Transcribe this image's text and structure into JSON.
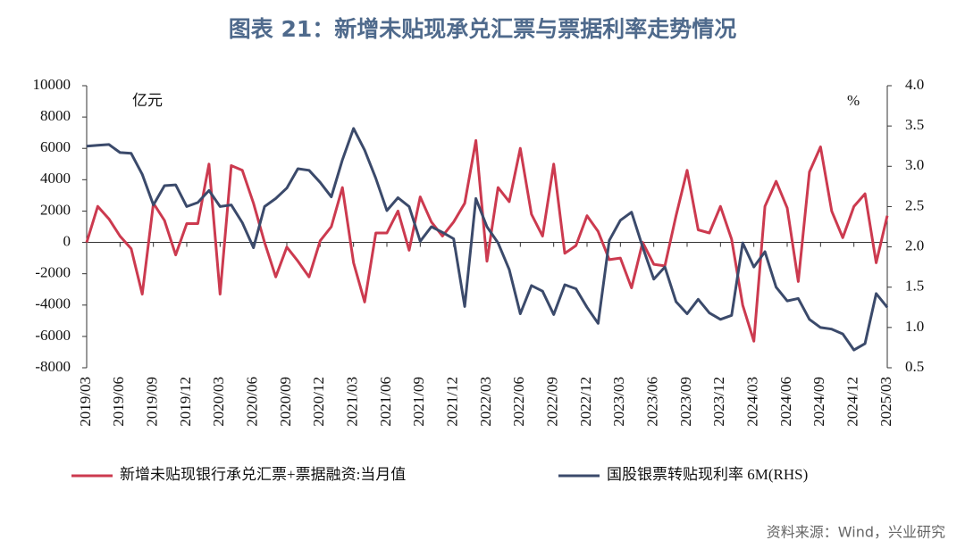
{
  "chart_data": {
    "type": "line",
    "title": "图表 21：新增未贴现承兑汇票与票据利率走势情况",
    "y_label": "亿元",
    "y2_label": "%",
    "source": "资料来源：Wind，兴业研究",
    "categories": [
      "2019/03",
      null,
      null,
      "2019/06",
      null,
      null,
      "2019/09",
      null,
      null,
      "2019/12",
      null,
      null,
      "2020/03",
      null,
      null,
      "2020/06",
      null,
      null,
      "2020/09",
      null,
      null,
      "2020/12",
      null,
      null,
      "2021/03",
      null,
      null,
      "2021/06",
      null,
      null,
      "2021/09",
      null,
      null,
      "2021/12",
      null,
      null,
      "2022/03",
      null,
      null,
      "2022/06",
      null,
      null,
      "2022/09",
      null,
      null,
      "2022/12",
      null,
      null,
      "2023/03",
      null,
      null,
      "2023/06",
      null,
      null,
      "2023/09",
      null,
      null,
      "2023/12",
      null,
      null,
      "2024/03",
      null,
      null,
      "2024/06",
      null,
      null,
      "2024/09",
      null,
      null,
      "2024/12",
      null,
      null,
      "2025/03"
    ],
    "series": [
      {
        "name": "新增未贴现银行承兑汇票+票据融资:当月值",
        "color": "#cc3a4f",
        "values": [
          0,
          2300,
          1500,
          400,
          -400,
          -3300,
          2500,
          1400,
          -800,
          1200,
          1200,
          5000,
          -3300,
          4900,
          4600,
          2500,
          0,
          -2200,
          -300,
          -1200,
          -2200,
          100,
          1000,
          3500,
          -1300,
          -3800,
          600,
          600,
          2000,
          -500,
          2900,
          1300,
          400,
          1300,
          2500,
          6500,
          -1200,
          3500,
          2600,
          6000,
          1800,
          400,
          5000,
          -700,
          -200,
          1700,
          700,
          -1100,
          -1000,
          -2900,
          0,
          -1400,
          -1500,
          1700,
          4600,
          800,
          600,
          2300,
          200,
          -4000,
          -6300,
          2300,
          3900,
          2200,
          -2500,
          4500,
          6100,
          2000,
          300,
          2300,
          3100,
          -1300,
          1700
        ]
      },
      {
        "name": "国股银票转贴现利率 6M(RHS)",
        "color": "#3b4a6b",
        "axis": "y2",
        "values": [
          3.25,
          3.26,
          3.27,
          3.17,
          3.16,
          2.9,
          2.52,
          2.76,
          2.77,
          2.5,
          2.55,
          2.7,
          2.5,
          2.52,
          2.3,
          1.99,
          2.5,
          2.6,
          2.73,
          2.97,
          2.95,
          2.8,
          2.62,
          3.08,
          3.47,
          3.2,
          2.85,
          2.45,
          2.61,
          2.5,
          2.07,
          2.25,
          2.18,
          2.1,
          1.26,
          2.6,
          2.25,
          2.05,
          1.72,
          1.17,
          1.52,
          1.45,
          1.16,
          1.53,
          1.48,
          1.25,
          1.05,
          2.08,
          2.33,
          2.43,
          2.0,
          1.6,
          1.75,
          1.32,
          1.17,
          1.35,
          1.18,
          1.1,
          1.15,
          2.05,
          1.75,
          1.94,
          1.5,
          1.33,
          1.36,
          1.1,
          1.0,
          0.98,
          0.92,
          0.72,
          0.8,
          1.42,
          1.25
        ]
      }
    ],
    "ylim": [
      -8000,
      10000
    ],
    "yticks": [
      -8000,
      -6000,
      -4000,
      -2000,
      0,
      2000,
      4000,
      6000,
      8000,
      10000
    ],
    "y2lim": [
      0.5,
      4.0
    ],
    "y2ticks": [
      0.5,
      {
        "value": 1,
        "label": "1.0"
      },
      1.5,
      {
        "value": 2,
        "label": "2.0"
      },
      2.5,
      {
        "value": 3,
        "label": "3.0"
      },
      3.5,
      {
        "value": 4,
        "label": "4.0"
      }
    ]
  }
}
